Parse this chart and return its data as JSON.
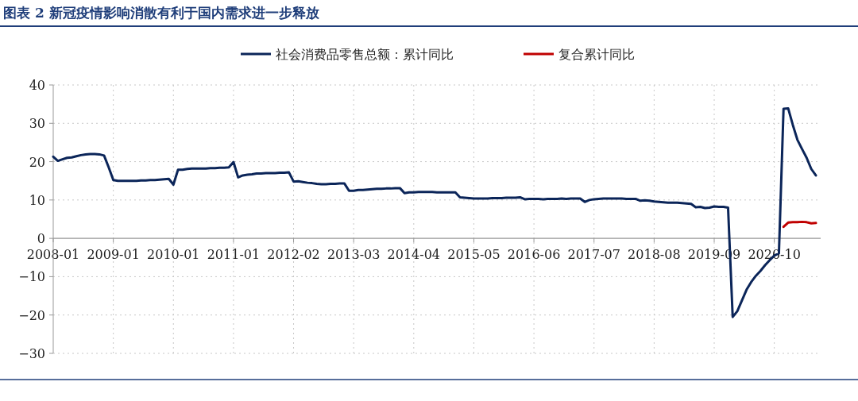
{
  "chart_data": {
    "type": "line",
    "title": "图表 2 新冠疫情影响消散有利于国内需求进一步释放",
    "categories": [
      "2008-01",
      null,
      null,
      null,
      null,
      null,
      null,
      null,
      null,
      null,
      null,
      null,
      null,
      "2009-01",
      null,
      null,
      null,
      null,
      null,
      null,
      null,
      null,
      null,
      null,
      null,
      null,
      "2010-01",
      null,
      null,
      null,
      null,
      null,
      null,
      null,
      null,
      null,
      null,
      null,
      null,
      "2011-01",
      null,
      null,
      null,
      null,
      null,
      null,
      null,
      null,
      null,
      null,
      null,
      null,
      "2012-02",
      null,
      null,
      null,
      null,
      null,
      null,
      null,
      null,
      null,
      null,
      null,
      null,
      "2013-03",
      null,
      null,
      null,
      null,
      null,
      null,
      null,
      null,
      null,
      null,
      null,
      null,
      "2014-04",
      null,
      null,
      null,
      null,
      null,
      null,
      null,
      null,
      null,
      null,
      null,
      null,
      "2015-05",
      null,
      null,
      null,
      null,
      null,
      null,
      null,
      null,
      null,
      null,
      null,
      null,
      "2016-06",
      null,
      null,
      null,
      null,
      null,
      null,
      null,
      null,
      null,
      null,
      null,
      null,
      "2017-07",
      null,
      null,
      null,
      null,
      null,
      null,
      null,
      null,
      null,
      null,
      null,
      null,
      "2018-08",
      null,
      null,
      null,
      null,
      null,
      null,
      null,
      null,
      null,
      null,
      null,
      null,
      "2019-09",
      null,
      null,
      null,
      null,
      null,
      null,
      null,
      null,
      null,
      null,
      null,
      null,
      "2020-10",
      null,
      null,
      null,
      null,
      null,
      null,
      null,
      null,
      null
    ],
    "series": [
      {
        "name": "社会消费品零售总额：累计同比",
        "color": "#0b2559",
        "values": [
          21.3,
          20.2,
          20.6,
          21.0,
          21.1,
          21.4,
          21.7,
          21.9,
          22.0,
          22.0,
          21.9,
          21.6,
          18.5,
          15.2,
          15.0,
          15.0,
          15.0,
          15.0,
          15.0,
          15.1,
          15.1,
          15.2,
          15.2,
          15.3,
          15.4,
          15.5,
          14.0,
          17.9,
          17.9,
          18.1,
          18.2,
          18.2,
          18.2,
          18.2,
          18.3,
          18.3,
          18.4,
          18.4,
          18.5,
          19.9,
          15.9,
          16.4,
          16.6,
          16.7,
          16.9,
          16.9,
          17.0,
          17.0,
          17.0,
          17.1,
          17.1,
          17.2,
          14.8,
          14.9,
          14.7,
          14.5,
          14.4,
          14.2,
          14.1,
          14.1,
          14.2,
          14.2,
          14.3,
          14.3,
          12.4,
          12.4,
          12.6,
          12.6,
          12.7,
          12.8,
          12.9,
          12.9,
          13.0,
          13.0,
          13.1,
          13.1,
          11.8,
          12.0,
          12.0,
          12.1,
          12.1,
          12.1,
          12.1,
          12.0,
          12.0,
          12.0,
          12.0,
          12.0,
          10.7,
          10.6,
          10.5,
          10.4,
          10.4,
          10.4,
          10.4,
          10.5,
          10.5,
          10.5,
          10.6,
          10.6,
          10.6,
          10.7,
          10.2,
          10.3,
          10.3,
          10.3,
          10.2,
          10.3,
          10.3,
          10.3,
          10.4,
          10.3,
          10.4,
          10.4,
          10.4,
          9.5,
          10.0,
          10.2,
          10.3,
          10.4,
          10.4,
          10.4,
          10.4,
          10.4,
          10.3,
          10.3,
          10.3,
          9.8,
          9.9,
          9.8,
          9.6,
          9.5,
          9.4,
          9.3,
          9.3,
          9.3,
          9.2,
          9.1,
          9.0,
          8.1,
          8.2,
          7.9,
          8.0,
          8.3,
          8.2,
          8.2,
          8.0,
          -20.5,
          -19.0,
          -16.2,
          -13.4,
          -11.4,
          -9.8,
          -8.5,
          -7.0,
          -5.7,
          -4.5,
          -3.9,
          33.8,
          33.9,
          29.6,
          25.7,
          23.3,
          21.0,
          18.1,
          16.4
        ]
      },
      {
        "name": "复合累计同比",
        "color": "#c00000",
        "values": [
          null,
          null,
          null,
          null,
          null,
          null,
          null,
          null,
          null,
          null,
          null,
          null,
          null,
          null,
          null,
          null,
          null,
          null,
          null,
          null,
          null,
          null,
          null,
          null,
          null,
          null,
          null,
          null,
          null,
          null,
          null,
          null,
          null,
          null,
          null,
          null,
          null,
          null,
          null,
          null,
          null,
          null,
          null,
          null,
          null,
          null,
          null,
          null,
          null,
          null,
          null,
          null,
          null,
          null,
          null,
          null,
          null,
          null,
          null,
          null,
          null,
          null,
          null,
          null,
          null,
          null,
          null,
          null,
          null,
          null,
          null,
          null,
          null,
          null,
          null,
          null,
          null,
          null,
          null,
          null,
          null,
          null,
          null,
          null,
          null,
          null,
          null,
          null,
          null,
          null,
          null,
          null,
          null,
          null,
          null,
          null,
          null,
          null,
          null,
          null,
          null,
          null,
          null,
          null,
          null,
          null,
          null,
          null,
          null,
          null,
          null,
          null,
          null,
          null,
          null,
          null,
          null,
          null,
          null,
          null,
          null,
          null,
          null,
          null,
          null,
          null,
          null,
          null,
          null,
          null,
          null,
          null,
          null,
          null,
          null,
          null,
          null,
          null,
          null,
          null,
          null,
          null,
          null,
          null,
          null,
          null,
          null,
          null,
          null,
          null,
          null,
          null,
          null,
          null,
          null,
          null,
          null,
          null,
          3.0,
          4.1,
          4.2,
          4.2,
          4.3,
          4.2,
          3.9,
          4.0
        ]
      }
    ],
    "ylim": [
      -30,
      40
    ],
    "yticks": [
      -30,
      -20,
      -10,
      0,
      10,
      20,
      30,
      40
    ],
    "grid": true,
    "legend": "top",
    "marker": "none",
    "line_style": "solid"
  }
}
